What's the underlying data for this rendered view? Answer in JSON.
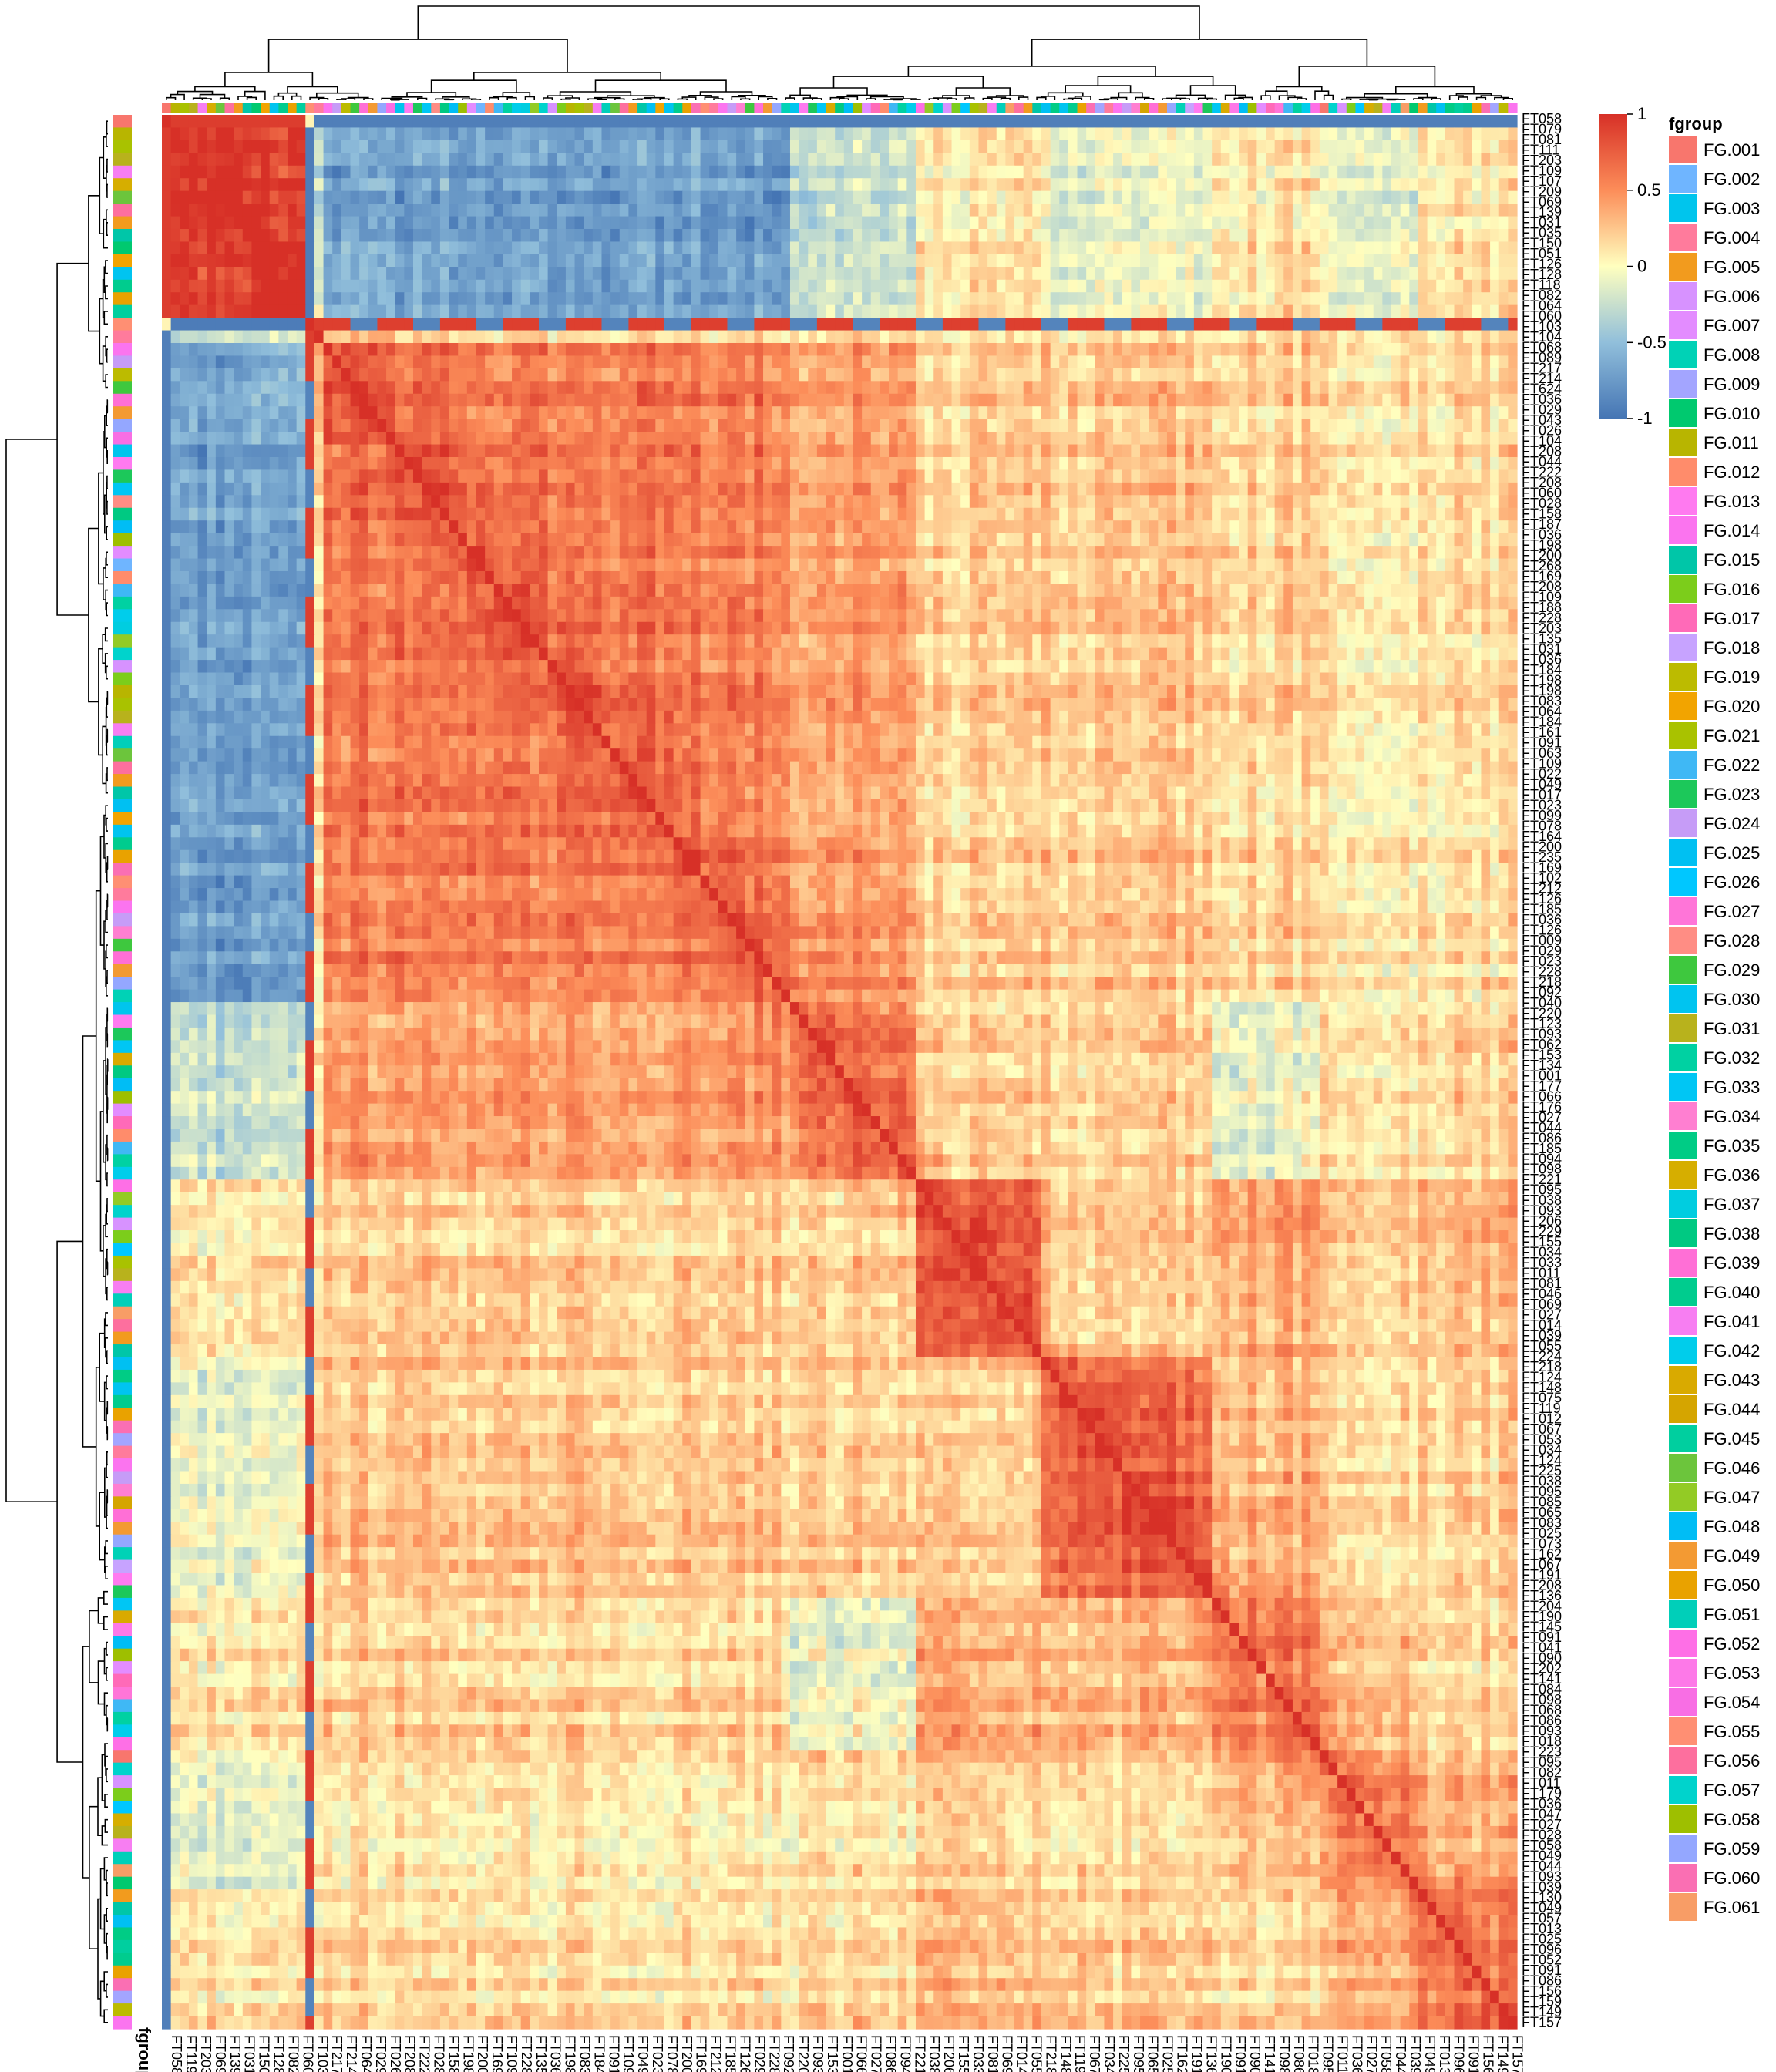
{
  "chart_data": {
    "type": "heatmap",
    "title": "",
    "xlabel": "",
    "ylabel": "",
    "value_range": [
      -1,
      1
    ],
    "color_stops": [
      {
        "value": -1,
        "color": "#4575b4"
      },
      {
        "value": -0.5,
        "color": "#91bfdb"
      },
      {
        "value": 0,
        "color": "#ffffbf"
      },
      {
        "value": 0.5,
        "color": "#fc8d59"
      },
      {
        "value": 1,
        "color": "#d73027"
      }
    ],
    "row_labels_visible": [
      "FT058",
      "FT079",
      "FT081",
      "FT111",
      "FT203",
      "FT109",
      "FT107",
      "FT209",
      "FT069",
      "FT139",
      "FT031",
      "FT035",
      "FT150",
      "FT051",
      "FT126",
      "FT128",
      "FT118",
      "FT082",
      "FT064",
      "FT060",
      "FT103",
      "FT104",
      "FT068",
      "FT089",
      "FT217",
      "FT214",
      "FT624",
      "FT036",
      "FT029",
      "FT043",
      "FT026",
      "FT104",
      "FT208",
      "FT044",
      "FT222",
      "FT208",
      "FT060",
      "FT028",
      "FT158",
      "FT187",
      "FT036",
      "FT198",
      "FT200",
      "FT268",
      "FT169",
      "FT208",
      "FT109",
      "FT188",
      "FT228",
      "FT203",
      "FT135",
      "FT031",
      "FT036",
      "FT184",
      "FT198",
      "FT198",
      "FT083",
      "FT064",
      "FT184",
      "FT161",
      "FT091",
      "FT063",
      "FT109",
      "FT022",
      "FT049",
      "FT017",
      "FT023",
      "FT099",
      "FT078",
      "FT164",
      "FT200",
      "FT235",
      "FT169",
      "FT102",
      "FT212",
      "FT126",
      "FT185",
      "FT036",
      "FT126",
      "FT009",
      "FT029",
      "FT023",
      "FT228",
      "FT218",
      "FT092",
      "FT040",
      "FT220",
      "FT123",
      "FT093",
      "FT062",
      "FT153",
      "FT134",
      "FT001",
      "FT177",
      "FT066",
      "FT176",
      "FT027",
      "FT044",
      "FT086",
      "FT185",
      "FT094",
      "FT098",
      "FT221",
      "FT095",
      "FT038",
      "FT093",
      "FT206",
      "FT229",
      "FT155",
      "FT034",
      "FT033",
      "FT011",
      "FT081",
      "FT046",
      "FT069",
      "FT027",
      "FT014",
      "FT039",
      "FT055",
      "FT224",
      "FT218",
      "FT124",
      "FT148",
      "FT075",
      "FT119",
      "FT012",
      "FT067",
      "FT053",
      "FT034",
      "FT124",
      "FT225",
      "FT038",
      "FT095",
      "FT085",
      "FT065",
      "FT083",
      "FT025",
      "FT073",
      "FT162",
      "FT067",
      "FT191",
      "FT208",
      "FT136",
      "FT204",
      "FT190",
      "FT145",
      "FT091",
      "FT041",
      "FT090",
      "FT202",
      "FT141",
      "FT084",
      "FT098",
      "FT068",
      "FT086",
      "FT093",
      "FT018",
      "FT223",
      "FT095",
      "FT082",
      "FT011",
      "FT179",
      "FT036",
      "FT047",
      "FT027",
      "FT028",
      "FT058",
      "FT049",
      "FT044",
      "FT093",
      "FT039",
      "FT130",
      "FT049",
      "FT057",
      "FT013",
      "FT025",
      "FT096",
      "FT052",
      "FT091",
      "FT086",
      "FT156",
      "FT159",
      "FT149",
      "FT157"
    ],
    "col_labels_visible": [
      "FT058",
      "FT119",
      "FT203",
      "FT069",
      "FT139",
      "FT031",
      "FT150",
      "FT128",
      "FT082",
      "FT060",
      "FT103",
      "FT217",
      "FT214",
      "FT064",
      "FT029",
      "FT026",
      "FT208",
      "FT222",
      "FT028",
      "FT158",
      "FT198",
      "FT200",
      "FT169",
      "FT109",
      "FT228",
      "FT135",
      "FT036",
      "FT198",
      "FT083",
      "FT184",
      "FT091",
      "FT109",
      "FT049",
      "FT023",
      "FT078",
      "FT200",
      "FT169",
      "FT212",
      "FT185",
      "FT126",
      "FT029",
      "FT228",
      "FT092",
      "FT220",
      "FT093",
      "FT153",
      "FT001",
      "FT066",
      "FT027",
      "FT086",
      "FT094",
      "FT221",
      "FT038",
      "FT206",
      "FT155",
      "FT033",
      "FT081",
      "FT069",
      "FT014",
      "FT055",
      "FT218",
      "FT148",
      "FT119",
      "FT067",
      "FT034",
      "FT225",
      "FT095",
      "FT065",
      "FT025",
      "FT162",
      "FT191",
      "FT136",
      "FT190",
      "FT091",
      "FT090",
      "FT141",
      "FT098",
      "FT086",
      "FT018",
      "FT095",
      "FT011",
      "FT036",
      "FT027",
      "FT058",
      "FT044",
      "FT039",
      "FT049",
      "FT013",
      "FT096",
      "FT091",
      "FT156",
      "FT149",
      "FT157"
    ],
    "block_structure": [
      {
        "name": "cluster-1",
        "start": 1,
        "end": 16
      },
      {
        "name": "cluster-2",
        "start": 18,
        "end": 70
      },
      {
        "name": "cluster-3",
        "start": 70,
        "end": 84
      },
      {
        "name": "cluster-4",
        "start": 84,
        "end": 98
      },
      {
        "name": "cluster-5",
        "start": 98,
        "end": 117
      },
      {
        "name": "cluster-6",
        "start": 117,
        "end": 129
      },
      {
        "name": "cluster-7",
        "start": 129,
        "end": 140
      },
      {
        "name": "cluster-8",
        "start": 140,
        "end": 151
      }
    ],
    "legend_placement": "right"
  },
  "colorbar": {
    "ticks": [
      {
        "value": 1,
        "label": "1"
      },
      {
        "value": 0.5,
        "label": "0.5"
      },
      {
        "value": 0,
        "label": "0"
      },
      {
        "value": -0.5,
        "label": "-0.5"
      },
      {
        "value": -1,
        "label": "-1"
      }
    ]
  },
  "annotation": {
    "axis_label": "fgroup",
    "legend_title": "fgroup",
    "groups": [
      {
        "name": "FG.001",
        "color": "#f8766d"
      },
      {
        "name": "FG.002",
        "color": "#6fb5ff"
      },
      {
        "name": "FG.003",
        "color": "#00c5ed"
      },
      {
        "name": "FG.004",
        "color": "#ff7b9c"
      },
      {
        "name": "FG.005",
        "color": "#f29b1e"
      },
      {
        "name": "FG.006",
        "color": "#d792ff"
      },
      {
        "name": "FG.007",
        "color": "#e38cff"
      },
      {
        "name": "FG.008",
        "color": "#00d2b6"
      },
      {
        "name": "FG.009",
        "color": "#a3a5ff"
      },
      {
        "name": "FG.010",
        "color": "#00c96f"
      },
      {
        "name": "FG.011",
        "color": "#b8b500"
      },
      {
        "name": "FG.012",
        "color": "#ff8c6b"
      },
      {
        "name": "FG.013",
        "color": "#ff7af0"
      },
      {
        "name": "FG.014",
        "color": "#fb74ef"
      },
      {
        "name": "FG.015",
        "color": "#00c6a8"
      },
      {
        "name": "FG.016",
        "color": "#7ccd1b"
      },
      {
        "name": "FG.017",
        "color": "#ff6ab8"
      },
      {
        "name": "FG.018",
        "color": "#c7a3ff"
      },
      {
        "name": "FG.019",
        "color": "#bcbb00"
      },
      {
        "name": "FG.020",
        "color": "#f2a400"
      },
      {
        "name": "FG.021",
        "color": "#a9c200"
      },
      {
        "name": "FG.022",
        "color": "#3fb8f5"
      },
      {
        "name": "FG.023",
        "color": "#1cc85a"
      },
      {
        "name": "FG.024",
        "color": "#c69cf7"
      },
      {
        "name": "FG.025",
        "color": "#00c0f2"
      },
      {
        "name": "FG.026",
        "color": "#00c7ff"
      },
      {
        "name": "FG.027",
        "color": "#ff75d8"
      },
      {
        "name": "FG.028",
        "color": "#ff8d84"
      },
      {
        "name": "FG.029",
        "color": "#3ec83e"
      },
      {
        "name": "FG.030",
        "color": "#00c4f0"
      },
      {
        "name": "FG.031",
        "color": "#b8b21c"
      },
      {
        "name": "FG.032",
        "color": "#00d1a2"
      },
      {
        "name": "FG.033",
        "color": "#00c6f4"
      },
      {
        "name": "FG.034",
        "color": "#ff7fd1"
      },
      {
        "name": "FG.035",
        "color": "#00cc85"
      },
      {
        "name": "FG.036",
        "color": "#d6ae00"
      },
      {
        "name": "FG.037",
        "color": "#00cde0"
      },
      {
        "name": "FG.038",
        "color": "#00c982"
      },
      {
        "name": "FG.039",
        "color": "#ff6fd6"
      },
      {
        "name": "FG.040",
        "color": "#00cc8e"
      },
      {
        "name": "FG.041",
        "color": "#f77ef2"
      },
      {
        "name": "FG.042",
        "color": "#00cdeb"
      },
      {
        "name": "FG.043",
        "color": "#d9aa00"
      },
      {
        "name": "FG.044",
        "color": "#d5a500"
      },
      {
        "name": "FG.045",
        "color": "#00cf9f"
      },
      {
        "name": "FG.046",
        "color": "#6cc53c"
      },
      {
        "name": "FG.047",
        "color": "#93cb25"
      },
      {
        "name": "FG.048",
        "color": "#00bdf5"
      },
      {
        "name": "FG.049",
        "color": "#f39a33"
      },
      {
        "name": "FG.050",
        "color": "#e9a200"
      },
      {
        "name": "FG.051",
        "color": "#00cfb9"
      },
      {
        "name": "FG.052",
        "color": "#fe6fe6"
      },
      {
        "name": "FG.053",
        "color": "#fd79e8"
      },
      {
        "name": "FG.054",
        "color": "#f86ee4"
      },
      {
        "name": "FG.055",
        "color": "#ff8f73"
      },
      {
        "name": "FG.056",
        "color": "#fd6f9e"
      },
      {
        "name": "FG.057",
        "color": "#00d3cc"
      },
      {
        "name": "FG.058",
        "color": "#9ebf00"
      },
      {
        "name": "FG.059",
        "color": "#94a7ff"
      },
      {
        "name": "FG.060",
        "color": "#fa6fb3"
      },
      {
        "name": "FG.061",
        "color": "#f89d66"
      }
    ]
  }
}
